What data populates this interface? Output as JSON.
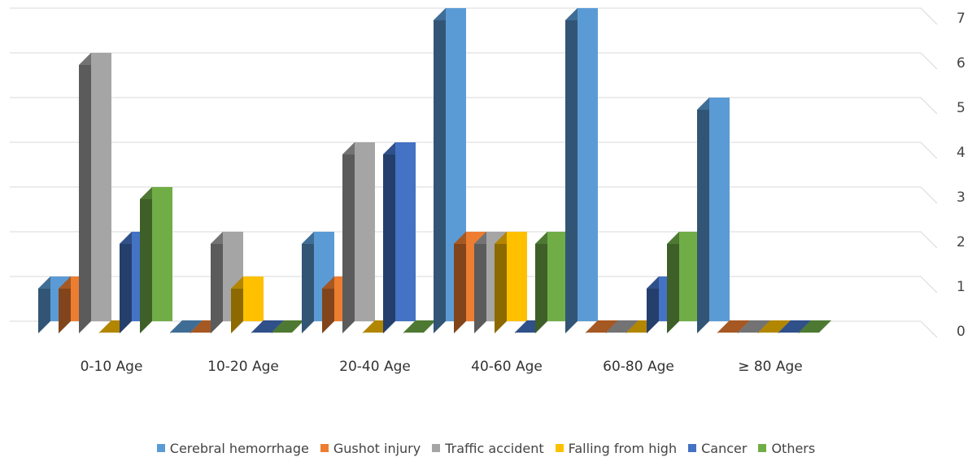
{
  "chart_data": {
    "type": "bar",
    "style": "3d-clustered-column",
    "categories": [
      "0-10 Age",
      "10-20 Age",
      "20-40 Age",
      "40-60 Age",
      "60-80 Age",
      "≥ 80 Age"
    ],
    "series": [
      {
        "name": "Cerebral hemorrhage",
        "color": "#5b9bd5",
        "values": [
          1,
          0,
          2,
          7,
          7,
          5
        ]
      },
      {
        "name": "Gushot injury",
        "color": "#ed7d31",
        "values": [
          1,
          0,
          1,
          2,
          0,
          0
        ]
      },
      {
        "name": "Traffic accident",
        "color": "#a5a5a5",
        "values": [
          6,
          2,
          4,
          2,
          0,
          0
        ]
      },
      {
        "name": "Falling from high",
        "color": "#ffc000",
        "values": [
          0,
          1,
          0,
          2,
          0,
          0
        ]
      },
      {
        "name": "Cancer",
        "color": "#4472c4",
        "values": [
          2,
          0,
          4,
          0,
          1,
          0
        ]
      },
      {
        "name": "Others",
        "color": "#70ad47",
        "values": [
          3,
          0,
          0,
          2,
          2,
          0
        ]
      }
    ],
    "y_ticks": [
      0,
      1,
      2,
      3,
      4,
      5,
      6,
      7
    ],
    "ylim": [
      0,
      7
    ],
    "y_axis_side": "right",
    "grid": true,
    "legend_position": "bottom"
  }
}
